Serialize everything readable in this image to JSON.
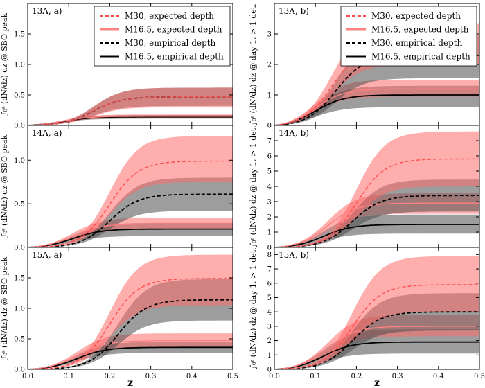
{
  "chart_data": {
    "type": "line",
    "x_label": "z",
    "x_range": [
      0.0,
      0.5
    ],
    "x_ticks": [
      "0.0",
      "0.1",
      "0.2",
      "0.3",
      "0.4",
      "0.5"
    ],
    "legend": [
      {
        "key": "m30_expected",
        "label": "M30, expected depth",
        "color": "#ff4c4c",
        "style": "dashed"
      },
      {
        "key": "m165_expected",
        "label": "M16.5, expected depth",
        "color": "#ff8080",
        "style": "solid"
      },
      {
        "key": "m30_empirical",
        "label": "M30, empirical depth",
        "color": "#000000",
        "style": "dashed"
      },
      {
        "key": "m165_empirical",
        "label": "M16.5, empirical depth",
        "color": "#000000",
        "style": "solid"
      }
    ],
    "colors": {
      "expected_band": "#ff6b6b",
      "empirical_band": "#4d4d4d"
    },
    "panels": [
      {
        "id": "13a",
        "title": "13A, a)",
        "ylabel": "∫₀ᶻ (dN/dz) dz @ SBO peak",
        "ylim": [
          0,
          2.0
        ],
        "yticks": [
          "0.0",
          "0.5",
          "1.0",
          "1.5"
        ],
        "show_legend": true,
        "series": {
          "m30_expected": {
            "final": 0.47,
            "low": 0.3,
            "high": 0.62,
            "z50": 0.16
          },
          "m165_expected": {
            "final": 0.15,
            "low": 0.12,
            "high": 0.18,
            "z50": 0.085
          },
          "m30_empirical": {
            "final": 0.47,
            "low": 0.32,
            "high": 0.62,
            "z50": 0.16
          },
          "m165_empirical": {
            "final": 0.14,
            "low": 0.11,
            "high": 0.17,
            "z50": 0.085
          }
        }
      },
      {
        "id": "13b",
        "title": "13A, b)",
        "ylabel": "∫₀ᶻ (dN/dz) dz @ day 1, > 1 det.",
        "ylim": [
          0,
          4.0
        ],
        "yticks": [
          "0",
          "1",
          "2",
          "3"
        ],
        "show_legend": true,
        "series": {
          "m30_expected": {
            "final": 2.6,
            "low": 2.0,
            "high": 3.35,
            "z50": 0.14
          },
          "m165_expected": {
            "final": 1.2,
            "low": 0.95,
            "high": 1.5,
            "z50": 0.1
          },
          "m30_empirical": {
            "final": 2.3,
            "low": 1.55,
            "high": 2.95,
            "z50": 0.15
          },
          "m165_empirical": {
            "final": 1.0,
            "low": 0.6,
            "high": 1.3,
            "z50": 0.1
          }
        }
      },
      {
        "id": "14a",
        "title": "14A, a)",
        "ylabel": "∫₀ᶻ (dN/dz) dz @ SBO peak",
        "ylim": [
          0,
          1.4
        ],
        "yticks": [
          "0.0",
          "0.5",
          "1.0"
        ],
        "show_legend": false,
        "series": {
          "m30_expected": {
            "final": 0.99,
            "low": 0.75,
            "high": 1.28,
            "z50": 0.2
          },
          "m165_expected": {
            "final": 0.27,
            "low": 0.21,
            "high": 0.34,
            "z50": 0.11
          },
          "m30_empirical": {
            "final": 0.61,
            "low": 0.42,
            "high": 0.8,
            "z50": 0.2
          },
          "m165_empirical": {
            "final": 0.21,
            "low": 0.13,
            "high": 0.28,
            "z50": 0.11
          }
        }
      },
      {
        "id": "14b",
        "title": "14A, b)",
        "ylabel": "∫₀ᶻ (dN/dz) dz @ day 1, > 1 det.",
        "ylim": [
          0,
          8.0
        ],
        "yticks": [
          "0",
          "1",
          "2",
          "3",
          "4",
          "5",
          "6",
          "7"
        ],
        "show_legend": false,
        "series": {
          "m30_expected": {
            "final": 5.8,
            "low": 4.0,
            "high": 7.6,
            "z50": 0.2
          },
          "m165_expected": {
            "final": 2.9,
            "low": 2.2,
            "high": 3.55,
            "z50": 0.13
          },
          "m30_empirical": {
            "final": 3.4,
            "low": 2.35,
            "high": 4.45,
            "z50": 0.19
          },
          "m165_empirical": {
            "final": 1.5,
            "low": 0.9,
            "high": 2.15,
            "z50": 0.12
          }
        }
      },
      {
        "id": "15a",
        "title": "15A, a)",
        "ylabel": "∫₀ᶻ (dN/dz) dz @ SBO peak",
        "ylim": [
          0,
          2.0
        ],
        "yticks": [
          "0.0",
          "0.5",
          "1.0",
          "1.5"
        ],
        "show_legend": false,
        "series": {
          "m30_expected": {
            "final": 1.49,
            "low": 1.05,
            "high": 1.88,
            "z50": 0.2
          },
          "m165_expected": {
            "final": 0.47,
            "low": 0.37,
            "high": 0.59,
            "z50": 0.12
          },
          "m30_empirical": {
            "final": 1.14,
            "low": 0.8,
            "high": 1.48,
            "z50": 0.22
          },
          "m165_empirical": {
            "final": 0.36,
            "low": 0.27,
            "high": 0.45,
            "z50": 0.12
          }
        }
      },
      {
        "id": "15b",
        "title": "15A, b)",
        "ylabel": "∫₀ᶻ (dN/dz) dz @ day 1, > 1 det.",
        "ylim": [
          0,
          8.5
        ],
        "yticks": [
          "0",
          "1",
          "2",
          "3",
          "4",
          "5",
          "6",
          "7",
          "8"
        ],
        "show_legend": false,
        "series": {
          "m30_expected": {
            "final": 5.9,
            "low": 4.0,
            "high": 7.9,
            "z50": 0.19
          },
          "m165_expected": {
            "final": 3.0,
            "low": 2.3,
            "high": 3.8,
            "z50": 0.13
          },
          "m30_empirical": {
            "final": 4.0,
            "low": 2.7,
            "high": 5.3,
            "z50": 0.19
          },
          "m165_empirical": {
            "final": 1.9,
            "low": 1.1,
            "high": 2.8,
            "z50": 0.12
          }
        }
      }
    ]
  }
}
